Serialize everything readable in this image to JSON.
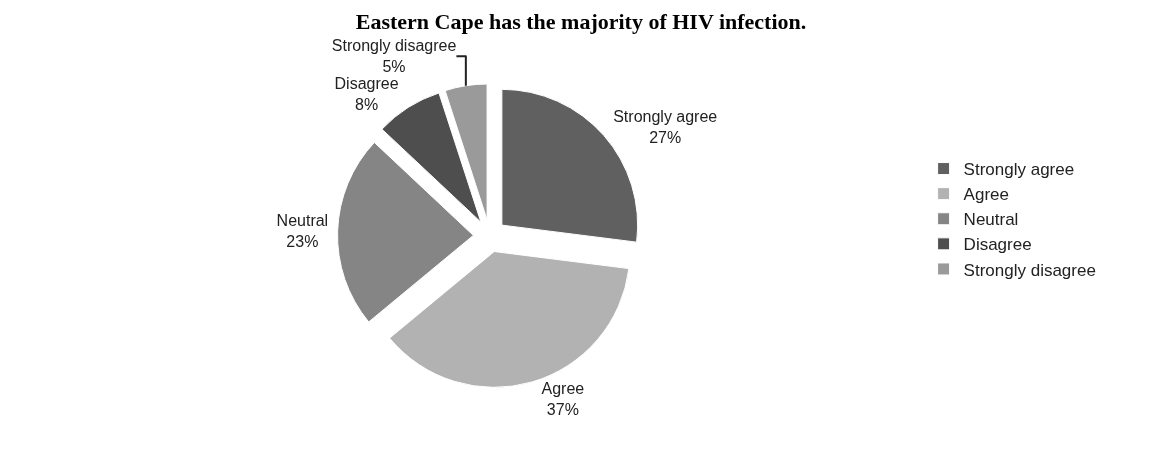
{
  "chart_data": {
    "type": "pie",
    "title": "Eastern Cape has the majority of HIV infection.",
    "categories": [
      "Strongly agree",
      "Agree",
      "Neutral",
      "Disagree",
      "Strongly disagree"
    ],
    "values": [
      27,
      37,
      23,
      8,
      5
    ],
    "colors": [
      "#606060",
      "#b2b2b2",
      "#858585",
      "#4e4e4e",
      "#9a9a9a"
    ],
    "value_labels": [
      "27%",
      "37%",
      "23%",
      "8%",
      "5%"
    ],
    "legend": "right"
  }
}
